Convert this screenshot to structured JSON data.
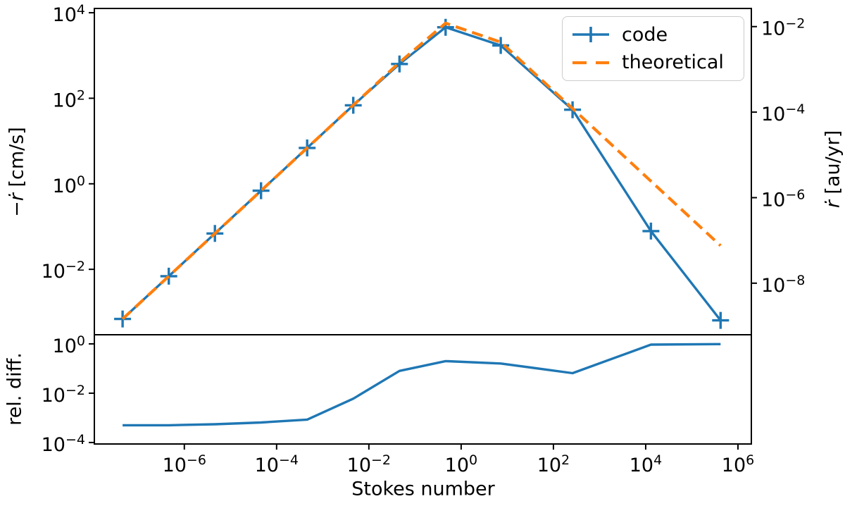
{
  "chart_data": [
    {
      "type": "line",
      "panel": "top",
      "title": "",
      "xscale": "log",
      "yscale": "log",
      "xlim_log": [
        -7.95,
        6.29
      ],
      "ylim_log": [
        -3.53,
        4.1
      ],
      "x_tick_exp": [
        -6,
        -4,
        -2,
        0,
        2,
        4,
        6
      ],
      "y_tick_exp": [
        4,
        2,
        0,
        -2
      ],
      "right_tick_exp": [
        -2,
        -4,
        -6,
        -8
      ],
      "right_axis_au_yr_per_cm_s": 2.11e-06,
      "grid": false,
      "ylabel_left": "−ṙ [cm/s]",
      "ylabel_left_parts": {
        "sign": "−",
        "symbol": "ṙ",
        "unit": " [cm/s]"
      },
      "ylabel_right": "ṙ [au/yr]",
      "ylabel_right_parts": {
        "symbol": "ṙ",
        "unit": " [au/yr]"
      },
      "legend": {
        "location": "upper right",
        "entries": [
          "code",
          "theoretical"
        ]
      },
      "series": [
        {
          "name": "code",
          "color": "#1f77b4",
          "line": "solid",
          "marker": "plus",
          "x": [
            4.6e-08,
            4.6e-07,
            4.6e-06,
            4.6e-05,
            0.00046,
            0.0046,
            0.046,
            0.46,
            7.2,
            260,
            13000,
            420000
          ],
          "y": [
            0.00069,
            0.0069,
            0.069,
            0.69,
            6.89,
            68.6,
            633,
            4570,
            1720,
            54,
            0.0785,
            0.00064
          ]
        },
        {
          "name": "theoretical",
          "color": "#ff7f0e",
          "line": "dashed",
          "marker": "none",
          "x": [
            4.6e-08,
            4.6e-07,
            4.6e-06,
            4.6e-05,
            0.00046,
            0.0046,
            0.046,
            0.46,
            7.2,
            260,
            13000,
            420000
          ],
          "y": [
            0.00069,
            0.0069,
            0.069,
            0.69,
            6.9,
            69,
            688,
            5700,
            2050,
            57.7,
            1.15,
            0.0357
          ]
        }
      ]
    },
    {
      "type": "line",
      "panel": "bottom",
      "xscale": "log",
      "yscale": "log",
      "xlabel": "Stokes number",
      "ylabel": "rel. diff.",
      "ylim_log": [
        -4.06,
        0.37
      ],
      "y_tick_exp": [
        0,
        -2,
        -4
      ],
      "x_tick_exp": [
        -6,
        -4,
        -2,
        0,
        2,
        4,
        6
      ],
      "grid": false,
      "series": [
        {
          "name": "rel. diff.",
          "color": "#1f77b4",
          "line": "solid",
          "marker": "none",
          "x": [
            4.6e-08,
            4.6e-07,
            4.6e-06,
            4.6e-05,
            0.00046,
            0.0046,
            0.046,
            0.46,
            7.2,
            260,
            13000,
            420000
          ],
          "y": [
            0.0005,
            0.0005,
            0.00055,
            0.00065,
            0.00085,
            0.006,
            0.08,
            0.2,
            0.16,
            0.065,
            0.93,
            0.98
          ]
        }
      ]
    }
  ]
}
